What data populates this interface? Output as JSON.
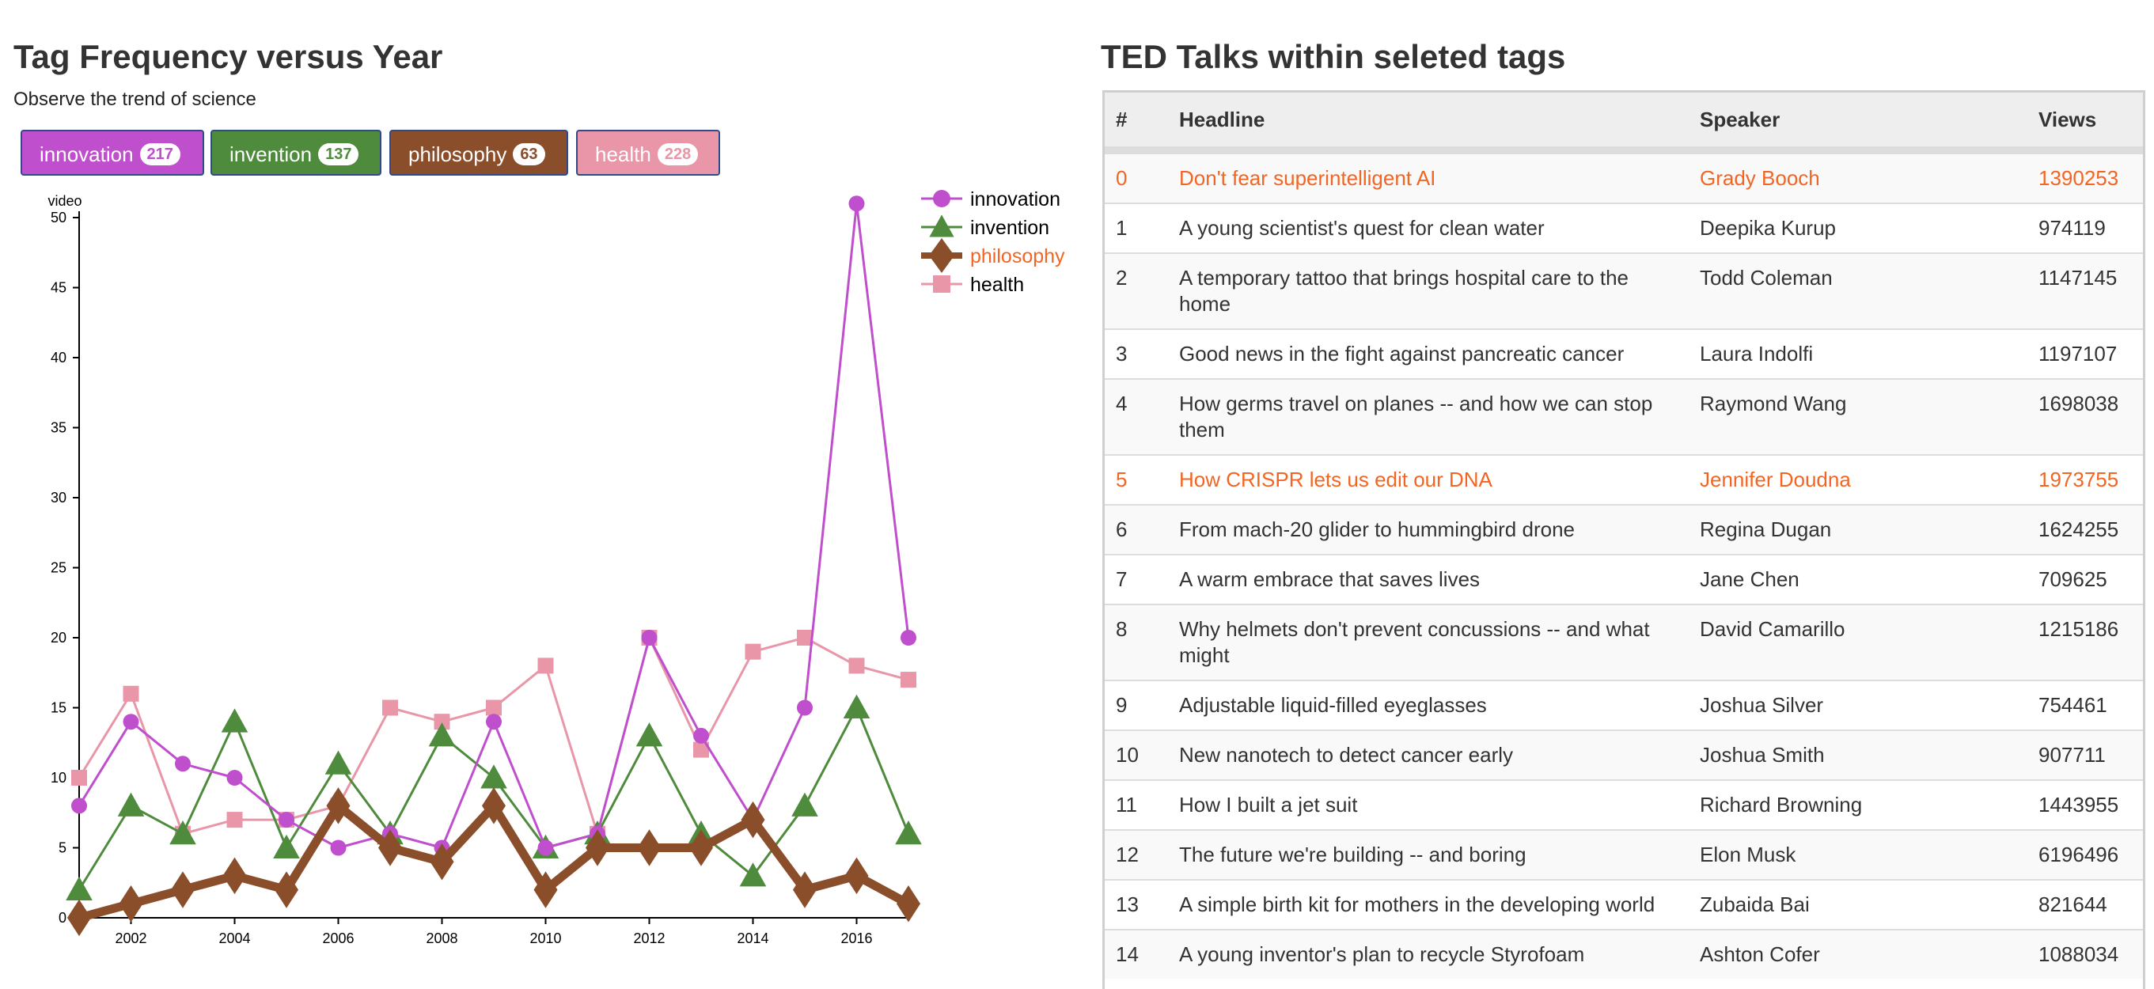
{
  "left": {
    "title": "Tag Frequency versus Year",
    "subtitle": "Observe the trend of science"
  },
  "tags": [
    {
      "label": "innovation",
      "count": "217",
      "color": "#c04fcd"
    },
    {
      "label": "invention",
      "count": "137",
      "color": "#4e8b3c"
    },
    {
      "label": "philosophy",
      "count": "63",
      "color": "#8b4e2b"
    },
    {
      "label": "health",
      "count": "228",
      "color": "#e896a8"
    }
  ],
  "chart_data": {
    "type": "line",
    "ylabel": "video",
    "xlabel": "",
    "x": [
      2001,
      2002,
      2003,
      2004,
      2005,
      2006,
      2007,
      2008,
      2009,
      2010,
      2011,
      2012,
      2013,
      2014,
      2015,
      2016,
      2017
    ],
    "xticks": [
      2002,
      2004,
      2006,
      2008,
      2010,
      2012,
      2014,
      2016
    ],
    "yticks": [
      0,
      5,
      10,
      15,
      20,
      25,
      30,
      35,
      40,
      45,
      50
    ],
    "ylim": [
      0,
      50
    ],
    "legend_position": "top-right",
    "highlighted_series": "philosophy",
    "highlight_color": "#f26522",
    "series": [
      {
        "name": "innovation",
        "color": "#c04fcd",
        "marker": "circle",
        "values": [
          8,
          14,
          11,
          10,
          7,
          5,
          6,
          5,
          14,
          5,
          6,
          20,
          13,
          7,
          15,
          51,
          20
        ]
      },
      {
        "name": "invention",
        "color": "#4e8b3c",
        "marker": "triangle",
        "values": [
          2,
          8,
          6,
          14,
          5,
          11,
          6,
          13,
          10,
          5,
          6,
          13,
          6,
          3,
          8,
          15,
          6
        ]
      },
      {
        "name": "philosophy",
        "color": "#8b4e2b",
        "marker": "diamond",
        "values": [
          0,
          1,
          2,
          3,
          2,
          8,
          5,
          4,
          8,
          2,
          5,
          5,
          5,
          7,
          2,
          3,
          1
        ]
      },
      {
        "name": "health",
        "color": "#e896a8",
        "marker": "square",
        "values": [
          10,
          16,
          6,
          7,
          7,
          8,
          15,
          14,
          15,
          18,
          6,
          20,
          12,
          19,
          20,
          18,
          17
        ]
      }
    ]
  },
  "right": {
    "title": "TED Talks within seleted tags",
    "columns": [
      "#",
      "Headline",
      "Speaker",
      "Views"
    ],
    "highlight_color": "#f26522",
    "rows": [
      {
        "n": "0",
        "headline": "Don't fear superintelligent AI",
        "speaker": "Grady Booch",
        "views": "1390253",
        "highlight": true
      },
      {
        "n": "1",
        "headline": "A young scientist's quest for clean water",
        "speaker": "Deepika Kurup",
        "views": "974119",
        "highlight": false
      },
      {
        "n": "2",
        "headline": "A temporary tattoo that brings hospital care to the home",
        "speaker": "Todd Coleman",
        "views": "1147145",
        "highlight": false
      },
      {
        "n": "3",
        "headline": "Good news in the fight against pancreatic cancer",
        "speaker": "Laura Indolfi",
        "views": "1197107",
        "highlight": false
      },
      {
        "n": "4",
        "headline": "How germs travel on planes -- and how we can stop them",
        "speaker": "Raymond Wang",
        "views": "1698038",
        "highlight": false
      },
      {
        "n": "5",
        "headline": "How CRISPR lets us edit our DNA",
        "speaker": "Jennifer Doudna",
        "views": "1973755",
        "highlight": true
      },
      {
        "n": "6",
        "headline": "From mach-20 glider to hummingbird drone",
        "speaker": "Regina Dugan",
        "views": "1624255",
        "highlight": false
      },
      {
        "n": "7",
        "headline": "A warm embrace that saves lives",
        "speaker": "Jane Chen",
        "views": "709625",
        "highlight": false
      },
      {
        "n": "8",
        "headline": "Why helmets don't prevent concussions -- and what might",
        "speaker": "David Camarillo",
        "views": "1215186",
        "highlight": false
      },
      {
        "n": "9",
        "headline": "Adjustable liquid-filled eyeglasses",
        "speaker": "Joshua Silver",
        "views": "754461",
        "highlight": false
      },
      {
        "n": "10",
        "headline": "New nanotech to detect cancer early",
        "speaker": "Joshua Smith",
        "views": "907711",
        "highlight": false
      },
      {
        "n": "11",
        "headline": "How I built a jet suit",
        "speaker": "Richard Browning",
        "views": "1443955",
        "highlight": false
      },
      {
        "n": "12",
        "headline": "The future we're building -- and boring",
        "speaker": "Elon Musk",
        "views": "6196496",
        "highlight": false
      },
      {
        "n": "13",
        "headline": "A simple birth kit for mothers in the developing world",
        "speaker": "Zubaida Bai",
        "views": "821644",
        "highlight": false
      },
      {
        "n": "14",
        "headline": "A young inventor's plan to recycle Styrofoam",
        "speaker": "Ashton Cofer",
        "views": "1088034",
        "highlight": false
      }
    ]
  }
}
